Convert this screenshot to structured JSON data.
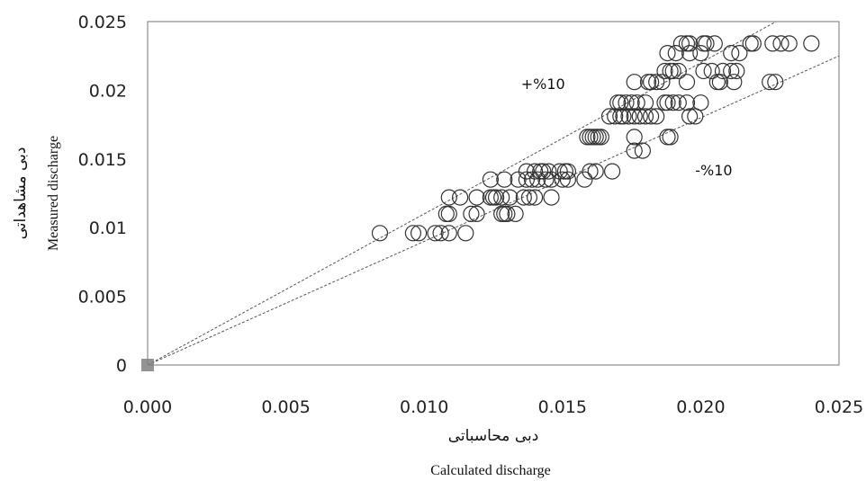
{
  "chart_data": {
    "type": "scatter",
    "xlabel_fa": "دبی محاسباتی",
    "xlabel_en": "Calculated discharge",
    "ylabel_fa": "دبی مشاهداتی",
    "ylabel_en": "Measured discharge",
    "xlim": [
      0,
      0.025
    ],
    "ylim": [
      0,
      0.025
    ],
    "x_ticks": [
      "0.000",
      "0.005",
      "0.010",
      "0.015",
      "0.020",
      "0.025"
    ],
    "y_ticks": [
      "0",
      "0.005",
      "0.01",
      "0.015",
      "0.02",
      "0.025"
    ],
    "annotations": [
      {
        "text": "+%10",
        "x": 0.0135,
        "y": 0.0201
      },
      {
        "text": "-%10",
        "x": 0.0198,
        "y": 0.0138
      }
    ],
    "reference_lines": [
      {
        "name": "+%10",
        "slope": 1.1
      },
      {
        "name": "-%10",
        "slope": 0.9
      }
    ],
    "marker_color": "#333333",
    "line_color": "#555555",
    "points": [
      [
        0.0084,
        0.0096
      ],
      [
        0.0096,
        0.0096
      ],
      [
        0.0098,
        0.0096
      ],
      [
        0.0104,
        0.0096
      ],
      [
        0.0106,
        0.0096
      ],
      [
        0.0109,
        0.0096
      ],
      [
        0.0115,
        0.0096
      ],
      [
        0.0108,
        0.011
      ],
      [
        0.0109,
        0.011
      ],
      [
        0.0117,
        0.011
      ],
      [
        0.0119,
        0.011
      ],
      [
        0.0128,
        0.011
      ],
      [
        0.0129,
        0.011
      ],
      [
        0.013,
        0.011
      ],
      [
        0.0133,
        0.011
      ],
      [
        0.0109,
        0.0122
      ],
      [
        0.0113,
        0.0122
      ],
      [
        0.0119,
        0.0122
      ],
      [
        0.0124,
        0.0122
      ],
      [
        0.0125,
        0.0122
      ],
      [
        0.0126,
        0.0122
      ],
      [
        0.0128,
        0.0122
      ],
      [
        0.0131,
        0.0122
      ],
      [
        0.0136,
        0.0122
      ],
      [
        0.0138,
        0.0122
      ],
      [
        0.014,
        0.0122
      ],
      [
        0.0146,
        0.0122
      ],
      [
        0.0124,
        0.0135
      ],
      [
        0.0129,
        0.0135
      ],
      [
        0.0134,
        0.0135
      ],
      [
        0.0137,
        0.0135
      ],
      [
        0.0139,
        0.0135
      ],
      [
        0.0141,
        0.0135
      ],
      [
        0.0144,
        0.0135
      ],
      [
        0.0146,
        0.0135
      ],
      [
        0.015,
        0.0135
      ],
      [
        0.0152,
        0.0135
      ],
      [
        0.0158,
        0.0135
      ],
      [
        0.0137,
        0.0141
      ],
      [
        0.014,
        0.0141
      ],
      [
        0.0142,
        0.0141
      ],
      [
        0.0143,
        0.0141
      ],
      [
        0.0145,
        0.0141
      ],
      [
        0.0149,
        0.0141
      ],
      [
        0.0151,
        0.0141
      ],
      [
        0.0152,
        0.0141
      ],
      [
        0.016,
        0.0141
      ],
      [
        0.0162,
        0.0141
      ],
      [
        0.0168,
        0.0141
      ],
      [
        0.0159,
        0.0166
      ],
      [
        0.016,
        0.0166
      ],
      [
        0.0161,
        0.0166
      ],
      [
        0.0162,
        0.0166
      ],
      [
        0.0163,
        0.0166
      ],
      [
        0.0164,
        0.0166
      ],
      [
        0.0176,
        0.0166
      ],
      [
        0.0188,
        0.0166
      ],
      [
        0.0189,
        0.0166
      ],
      [
        0.0176,
        0.0156
      ],
      [
        0.0179,
        0.0156
      ],
      [
        0.0167,
        0.0181
      ],
      [
        0.0169,
        0.0181
      ],
      [
        0.0171,
        0.0181
      ],
      [
        0.0172,
        0.0181
      ],
      [
        0.0174,
        0.0181
      ],
      [
        0.0176,
        0.0181
      ],
      [
        0.0178,
        0.0181
      ],
      [
        0.018,
        0.0181
      ],
      [
        0.0182,
        0.0181
      ],
      [
        0.0184,
        0.0181
      ],
      [
        0.0196,
        0.0181
      ],
      [
        0.0198,
        0.0181
      ],
      [
        0.017,
        0.0191
      ],
      [
        0.0171,
        0.0191
      ],
      [
        0.0173,
        0.0191
      ],
      [
        0.0175,
        0.0191
      ],
      [
        0.0177,
        0.0191
      ],
      [
        0.018,
        0.0191
      ],
      [
        0.0187,
        0.0191
      ],
      [
        0.0188,
        0.0191
      ],
      [
        0.019,
        0.0191
      ],
      [
        0.0192,
        0.0191
      ],
      [
        0.0195,
        0.0191
      ],
      [
        0.02,
        0.0191
      ],
      [
        0.0176,
        0.0206
      ],
      [
        0.0181,
        0.0206
      ],
      [
        0.0182,
        0.0206
      ],
      [
        0.0184,
        0.0206
      ],
      [
        0.0186,
        0.0206
      ],
      [
        0.0195,
        0.0206
      ],
      [
        0.0206,
        0.0206
      ],
      [
        0.0207,
        0.0206
      ],
      [
        0.0212,
        0.0206
      ],
      [
        0.0225,
        0.0206
      ],
      [
        0.0227,
        0.0206
      ],
      [
        0.0187,
        0.0214
      ],
      [
        0.0189,
        0.0214
      ],
      [
        0.019,
        0.0214
      ],
      [
        0.0192,
        0.0214
      ],
      [
        0.0201,
        0.0214
      ],
      [
        0.0204,
        0.0214
      ],
      [
        0.0208,
        0.0214
      ],
      [
        0.0211,
        0.0214
      ],
      [
        0.0213,
        0.0214
      ],
      [
        0.0188,
        0.0227
      ],
      [
        0.0191,
        0.0227
      ],
      [
        0.0196,
        0.0227
      ],
      [
        0.02,
        0.0227
      ],
      [
        0.0211,
        0.0227
      ],
      [
        0.0214,
        0.0227
      ],
      [
        0.0193,
        0.0234
      ],
      [
        0.0195,
        0.0234
      ],
      [
        0.0196,
        0.0234
      ],
      [
        0.0201,
        0.0234
      ],
      [
        0.0202,
        0.0234
      ],
      [
        0.0205,
        0.0234
      ],
      [
        0.0218,
        0.0234
      ],
      [
        0.0219,
        0.0234
      ],
      [
        0.0226,
        0.0234
      ],
      [
        0.0229,
        0.0234
      ],
      [
        0.0232,
        0.0234
      ],
      [
        0.024,
        0.0234
      ]
    ]
  }
}
